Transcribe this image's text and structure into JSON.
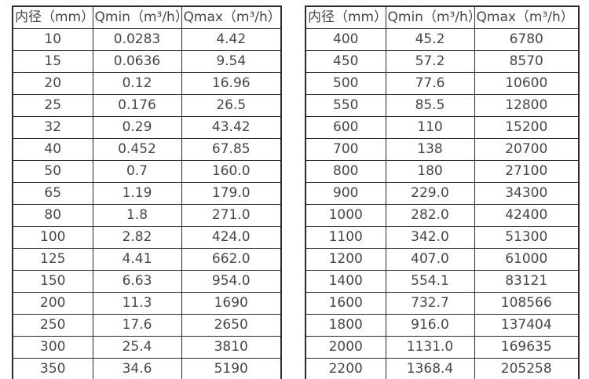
{
  "colors": {
    "background": "#ffffff",
    "border": "#2b2b2b",
    "text": "#474747"
  },
  "tables": [
    {
      "name": "small-diameter-table",
      "headers": [
        "内径（mm）",
        "Qmin（m³/h）",
        "Qmax（m³/h）"
      ],
      "rows": [
        [
          "10",
          "0.0283",
          "4.42"
        ],
        [
          "15",
          "0.0636",
          "9.54"
        ],
        [
          "20",
          "0.12",
          "16.96"
        ],
        [
          "25",
          "0.176",
          "26.5"
        ],
        [
          "32",
          "0.29",
          "43.42"
        ],
        [
          "40",
          "0.452",
          "67.85"
        ],
        [
          "50",
          "0.7",
          "160.0"
        ],
        [
          "65",
          "1.19",
          "179.0"
        ],
        [
          "80",
          "1.8",
          "271.0"
        ],
        [
          "100",
          "2.82",
          "424.0"
        ],
        [
          "125",
          "4.41",
          "662.0"
        ],
        [
          "150",
          "6.63",
          "954.0"
        ],
        [
          "200",
          "11.3",
          "1690"
        ],
        [
          "250",
          "17.6",
          "2650"
        ],
        [
          "300",
          "25.4",
          "3810"
        ],
        [
          "350",
          "34.6",
          "5190"
        ]
      ]
    },
    {
      "name": "large-diameter-table",
      "headers": [
        "内径（mm）",
        "Qmin（m³/h）",
        "Qmax（m³/h）"
      ],
      "rows": [
        [
          "400",
          "45.2",
          "6780"
        ],
        [
          "450",
          "57.2",
          "8570"
        ],
        [
          "500",
          "77.6",
          "10600"
        ],
        [
          "550",
          "85.5",
          "12800"
        ],
        [
          "600",
          "110",
          "15200"
        ],
        [
          "700",
          "138",
          "20700"
        ],
        [
          "800",
          "180",
          "27100"
        ],
        [
          "900",
          "229.0",
          "34300"
        ],
        [
          "1000",
          "282.0",
          "42400"
        ],
        [
          "1100",
          "342.0",
          "51300"
        ],
        [
          "1200",
          "407.0",
          "61000"
        ],
        [
          "1400",
          "554.1",
          "83121"
        ],
        [
          "1600",
          "732.7",
          "108566"
        ],
        [
          "1800",
          "916.0",
          "137404"
        ],
        [
          "2000",
          "1131.0",
          "169635"
        ],
        [
          "2200",
          "1368.4",
          "205258"
        ]
      ]
    }
  ]
}
